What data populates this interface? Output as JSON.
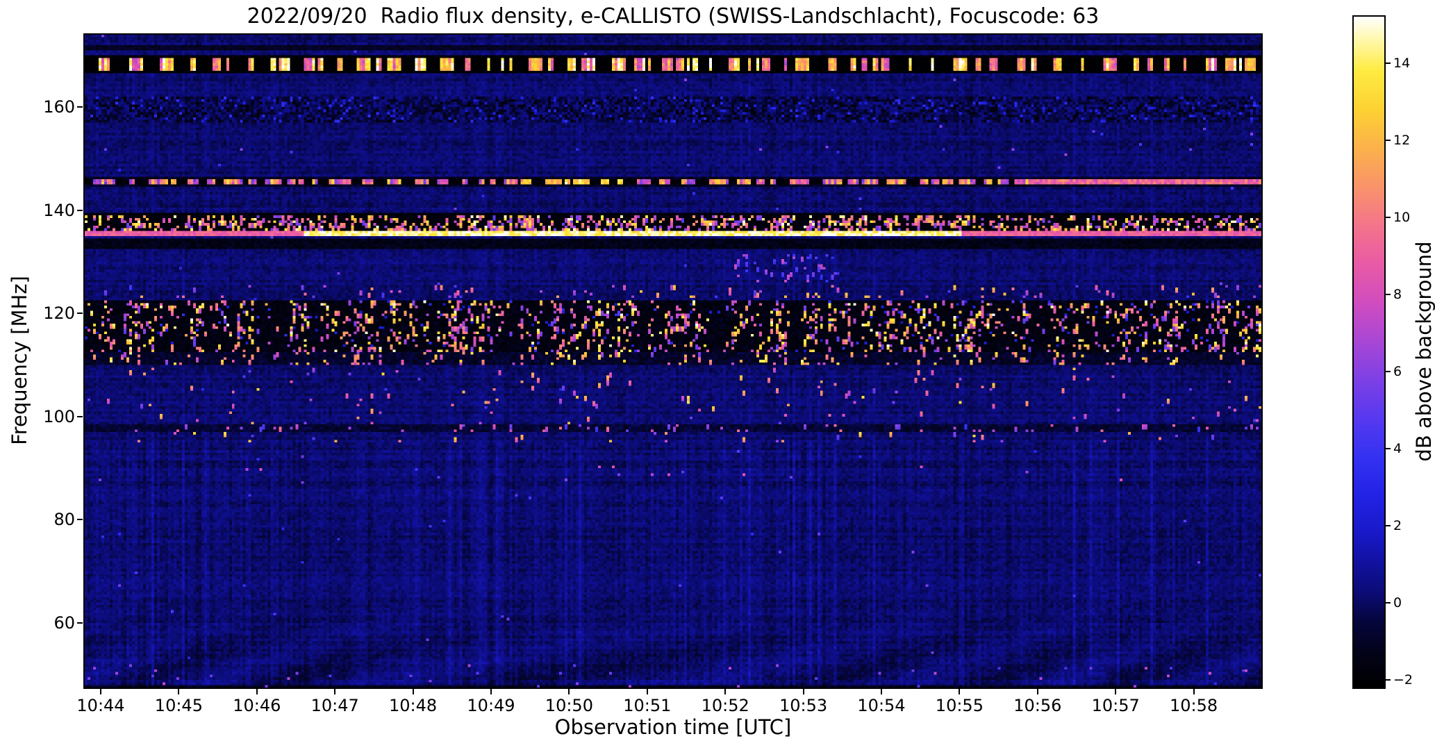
{
  "chart_data": {
    "type": "heatmap",
    "title": "2022/09/20  Radio flux density, e-CALLISTO (SWISS-Landschlacht), Focuscode: 63",
    "xlabel": "Observation time [UTC]",
    "ylabel": "Frequency [MHz]",
    "colorbar_label": "dB above background",
    "x_ticks": [
      "10:44",
      "10:45",
      "10:46",
      "10:47",
      "10:48",
      "10:49",
      "10:50",
      "10:51",
      "10:52",
      "10:53",
      "10:54",
      "10:55",
      "10:56",
      "10:57",
      "10:58"
    ],
    "x_range": [
      "10:44",
      "10:59"
    ],
    "y_ticks": [
      60,
      80,
      100,
      120,
      140,
      160
    ],
    "y_range": [
      47.5,
      174
    ],
    "colorbar_ticks": [
      -2,
      0,
      2,
      4,
      6,
      8,
      10,
      12,
      14
    ],
    "colorbar_range": [
      -2.2,
      15.2
    ],
    "background_level_db": 0,
    "legend": "none",
    "grid": false,
    "colormap_stops": [
      [
        -2.2,
        "#000000"
      ],
      [
        -1.3,
        "#03031a"
      ],
      [
        -0.5,
        "#05053c"
      ],
      [
        0.2,
        "#0b0b72"
      ],
      [
        1.0,
        "#11119e"
      ],
      [
        1.8,
        "#1919c8"
      ],
      [
        2.8,
        "#2323e6"
      ],
      [
        3.8,
        "#3532f2"
      ],
      [
        4.8,
        "#5839ef"
      ],
      [
        5.8,
        "#7e40e5"
      ],
      [
        6.8,
        "#aa47d5"
      ],
      [
        7.8,
        "#d14dbf"
      ],
      [
        8.8,
        "#e95ba5"
      ],
      [
        9.8,
        "#f4758b"
      ],
      [
        10.8,
        "#f9946a"
      ],
      [
        11.8,
        "#fcb24b"
      ],
      [
        12.8,
        "#fdd233"
      ],
      [
        13.8,
        "#feeb42"
      ],
      [
        14.6,
        "#fff8ad"
      ],
      [
        15.2,
        "#ffffff"
      ]
    ],
    "bands": [
      {
        "freq": [
          170.9,
          171.9
        ],
        "type": "fill",
        "base": -1.1,
        "amp": 0.4,
        "desc": "faint dark interference row near 171 MHz"
      },
      {
        "freq": [
          166.4,
          170.0
        ],
        "type": "fill",
        "base": -1.9,
        "amp": 0.25,
        "desc": "dark RFI channel around 168 MHz"
      },
      {
        "freq": [
          167.0,
          169.3
        ],
        "type": "burst",
        "base": -2.1,
        "duty": 0.5,
        "run_on": [
          1,
          5
        ],
        "run_off": [
          1,
          7
        ],
        "bright": [
          8,
          15.2
        ],
        "desc": "strong intermittent white/yellow bursts at ~168 MHz across the whole period"
      },
      {
        "freq": [
          157.0,
          161.8
        ],
        "type": "mottled",
        "base": -0.2,
        "amp": 1.0,
        "p_dark": 0.1,
        "p_blue": 0.06,
        "desc": "mottled broadcast band near 159 MHz with darker segments and blue patches"
      },
      {
        "freq": [
          150.5,
          156.5
        ],
        "type": "sparse",
        "p": 0.003,
        "bright": [
          3,
          7
        ],
        "desc": "occasional weak blue dots 151-156 MHz"
      },
      {
        "freq": [
          144.7,
          146.6
        ],
        "type": "fill",
        "base": -1.1,
        "amp": 0.7,
        "desc": "dark channel around 145.5 MHz"
      },
      {
        "freq": [
          145.1,
          146.1
        ],
        "type": "burst",
        "base": -1.9,
        "duty": 0.62,
        "run_on": [
          2,
          8
        ],
        "run_off": [
          1,
          5
        ],
        "bright": [
          6,
          13
        ],
        "solid_from": 0.8,
        "solid_value": 8.5,
        "hot_range": [
          0.37,
          0.46
        ],
        "hot_min": 11,
        "desc": "broken pink carrier at ~145.5 MHz, continuous after ~10:56, brightest yellow near 10:49-10:50"
      },
      {
        "freq": [
          135.9,
          139.4
        ],
        "type": "fill",
        "base": -1.8,
        "amp": 0.3,
        "desc": "black RFI band 136-139 MHz"
      },
      {
        "freq": [
          136.2,
          139.1
        ],
        "type": "speckle",
        "p": 0.3,
        "bright": [
          5,
          15
        ],
        "desc": "dense bright dashes within the 136-139 MHz band"
      },
      {
        "freq": [
          134.9,
          135.8
        ],
        "type": "solid",
        "value": 9,
        "hot_range": [
          0.185,
          0.745
        ],
        "hot_value": 14.4,
        "desc": "continuous pink carrier at ~135.3 MHz, white-hot between ~10:46:30 and ~10:55"
      },
      {
        "freq": [
          132.7,
          134.6
        ],
        "type": "fill",
        "base": -1.4,
        "amp": 0.5,
        "desc": "dark band just below the 135 MHz carrier"
      },
      {
        "freq": [
          126.0,
          131.5
        ],
        "type": "speckle",
        "p": 0.1,
        "bright": [
          3.5,
          8
        ],
        "x_range": [
          0.55,
          0.64
        ],
        "desc": "purple speckle cluster near 10:52:30-10:53 at 126-131 MHz"
      },
      {
        "freq": [
          123.0,
          125.5
        ],
        "type": "speckle",
        "p": 0.06,
        "bright": [
          4,
          13
        ],
        "clustered": true,
        "desc": "scattered speckles 123-125 MHz"
      },
      {
        "freq": [
          112.6,
          122.5
        ],
        "type": "mottled",
        "base": -1.5,
        "amp": 0.5,
        "p_dark": 0.35,
        "p_blue": 0.02,
        "desc": "broad black noisy band 113-122 MHz"
      },
      {
        "freq": [
          112.6,
          122.5
        ],
        "type": "speckle",
        "p": 0.17,
        "bright": [
          5,
          15.2
        ],
        "clustered": true,
        "desc": "dense white/yellow/pink speckles 113-122 MHz, strongest activity of the record"
      },
      {
        "freq": [
          109.8,
          112.4
        ],
        "type": "fill",
        "base": -0.9,
        "amp": 0.6,
        "desc": "dark rows 110-112 MHz"
      },
      {
        "freq": [
          109.8,
          112.4
        ],
        "type": "speckle",
        "p": 0.1,
        "bright": [
          6,
          14.5
        ],
        "clustered": true,
        "desc": "bright speckles on the 110-112 MHz rows"
      },
      {
        "freq": [
          95.0,
          109.5
        ],
        "type": "speckle",
        "p": 0.016,
        "bright": [
          5,
          14
        ],
        "clustered": true,
        "desc": "scattered bursts 95-110 MHz grouped in time"
      },
      {
        "freq": [
          96.8,
          98.4
        ],
        "type": "fill",
        "base": -0.7,
        "amp": 0.6,
        "desc": "faint dark row at ~97.5 MHz"
      },
      {
        "freq": [
          96.8,
          98.4
        ],
        "type": "speckle",
        "p": 0.05,
        "bright": [
          4,
          10
        ],
        "desc": "occasional speckles on the 97.5 MHz row"
      },
      {
        "freq": [
          87.5,
          90.5
        ],
        "type": "sparse",
        "p": 0.004,
        "bright": [
          4,
          9
        ],
        "desc": "rare pink dots near 88-90 MHz"
      },
      {
        "freq": [
          45.0,
          48.0
        ],
        "type": "fill",
        "base": -1.1,
        "amp": 0.5,
        "desc": "dark bottom edge with wavy interference fringes"
      },
      {
        "freq": [
          45.0,
          52.0
        ],
        "type": "sparse",
        "p": 0.01,
        "bright": [
          4,
          8
        ],
        "desc": "small pink speckles 45-52 MHz with vertical striping"
      }
    ]
  }
}
